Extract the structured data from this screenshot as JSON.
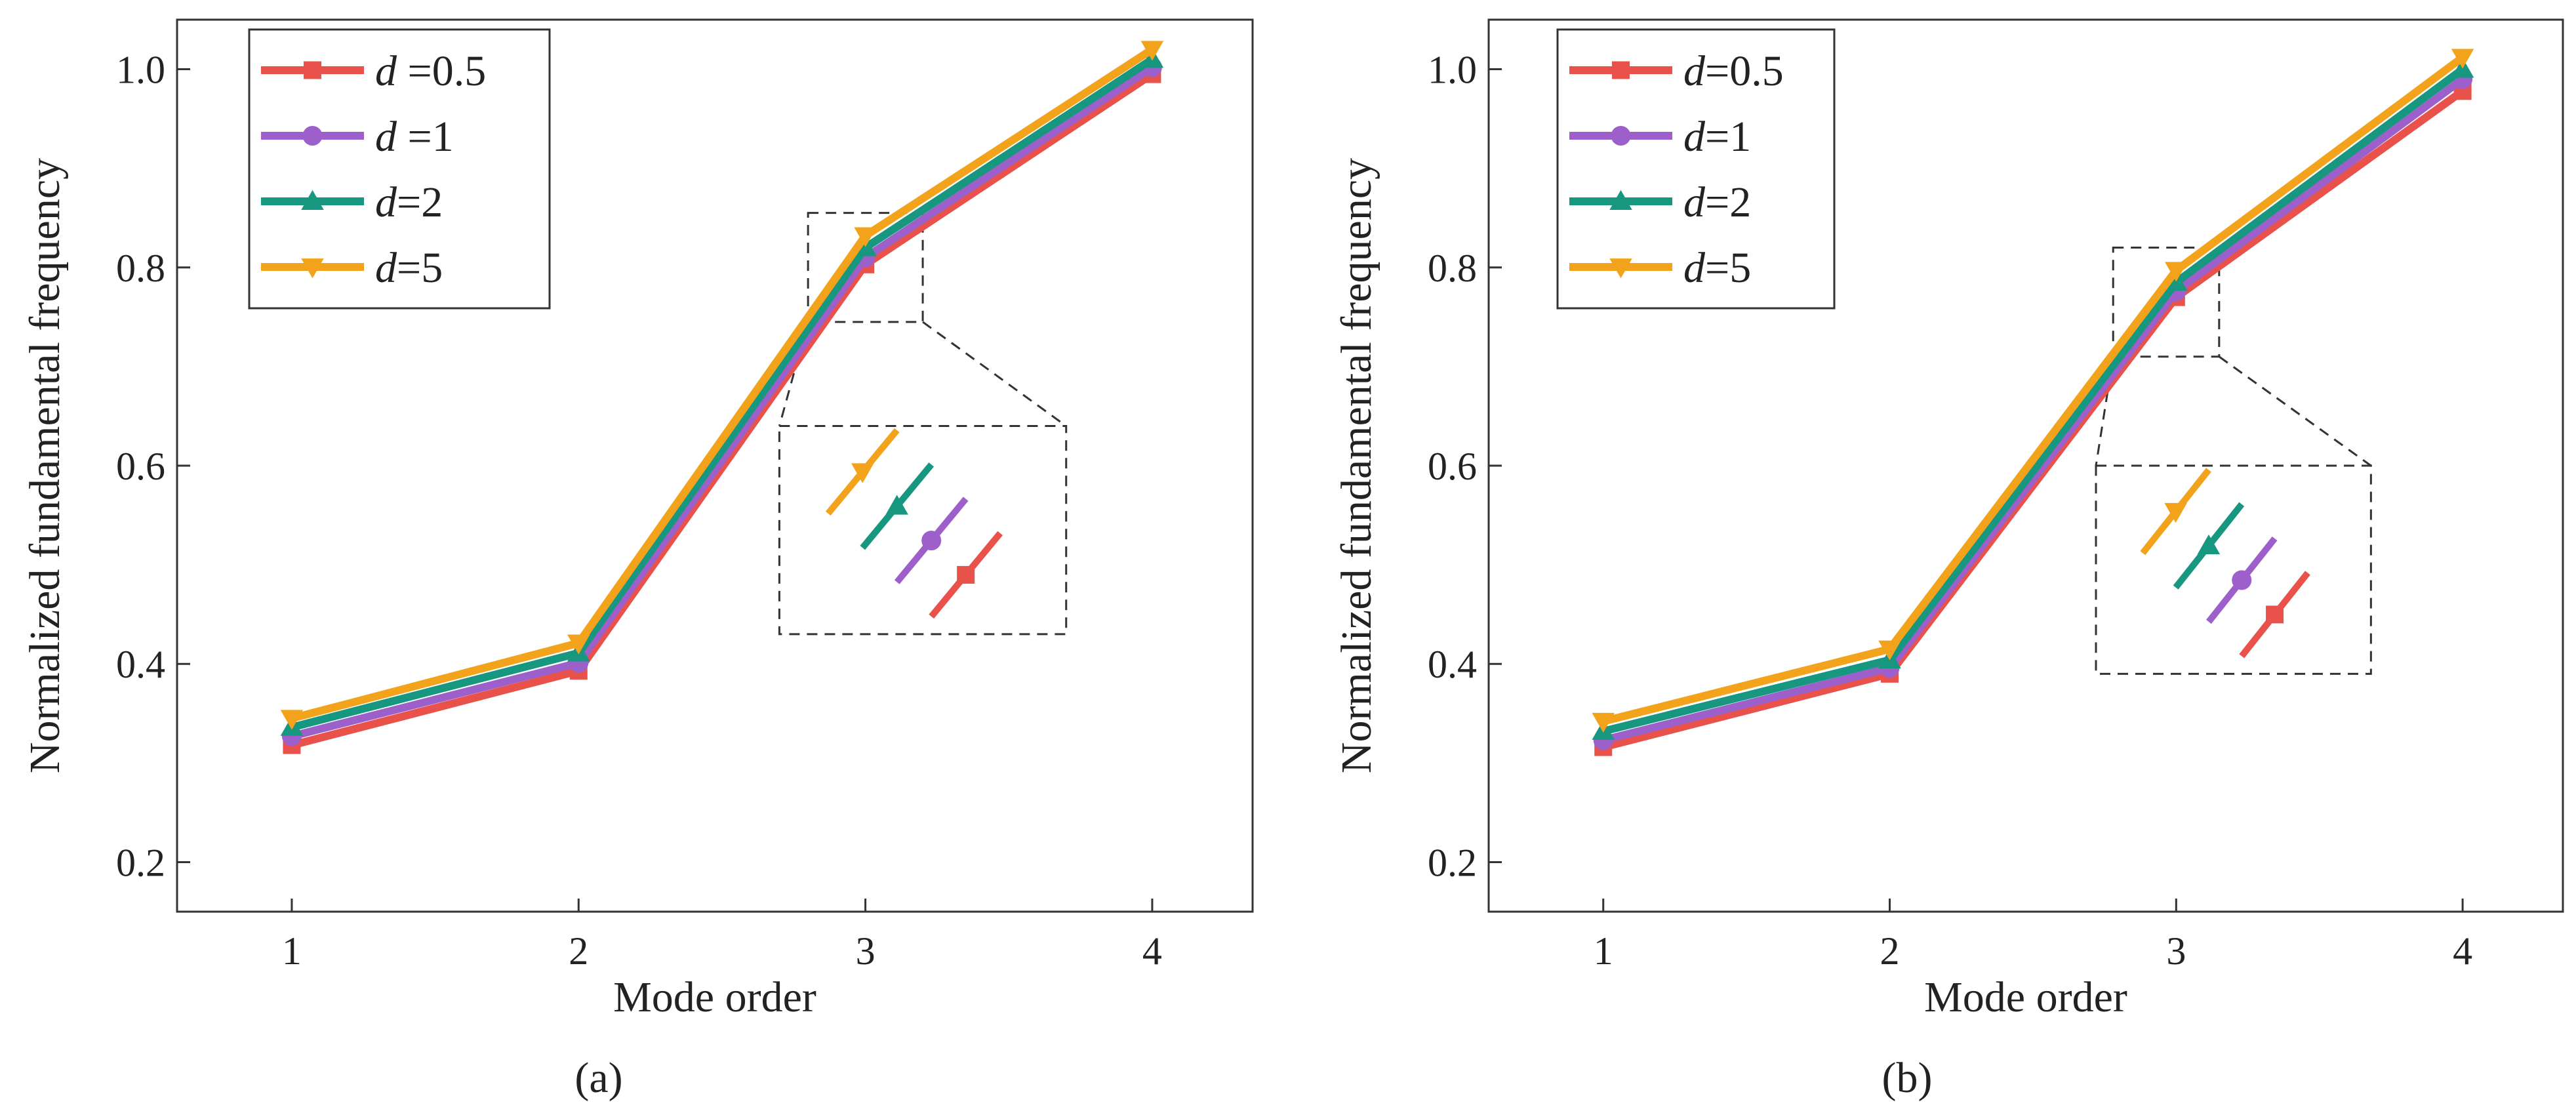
{
  "colors": {
    "d05": "#e8524a",
    "d1": "#9d5fc9",
    "d2": "#17977f",
    "d5": "#f2a31b"
  },
  "chart_data": [
    {
      "type": "line",
      "panel_label": "(a)",
      "xlabel": "Mode order",
      "ylabel": "Normalized fundamental frequency",
      "categories": [
        "1",
        "2",
        "3",
        "4"
      ],
      "x": [
        1,
        2,
        3,
        4
      ],
      "xlim": [
        0.6,
        4.35
      ],
      "ylim": [
        0.15,
        1.05
      ],
      "yticks": [
        0.2,
        0.4,
        0.6,
        0.8,
        1.0
      ],
      "ytick_labels": [
        "0.2",
        "0.4",
        "0.6",
        "0.8",
        "1.0"
      ],
      "legend_position": "top-left",
      "series": [
        {
          "name": "d =0.5",
          "var": "d",
          "rest": " =0.5",
          "color": "#e8524a",
          "marker": "square",
          "values": [
            0.318,
            0.393,
            0.803,
            0.995
          ]
        },
        {
          "name": "d =1",
          "var": "d",
          "rest": " =1",
          "color": "#9d5fc9",
          "marker": "circle",
          "values": [
            0.327,
            0.401,
            0.81,
            1.002
          ]
        },
        {
          "name": "d=2",
          "var": "d",
          "rest": "=2",
          "color": "#17977f",
          "marker": "triangle-up",
          "values": [
            0.336,
            0.411,
            0.82,
            1.01
          ]
        },
        {
          "name": "d=5",
          "var": "d",
          "rest": "=5",
          "color": "#f2a31b",
          "marker": "triangle-down",
          "values": [
            0.345,
            0.421,
            0.832,
            1.02
          ]
        }
      ],
      "zoom_source": {
        "x": [
          2.8,
          3.2
        ],
        "y": [
          0.745,
          0.855
        ]
      },
      "zoom_inset": {
        "x": [
          2.7,
          3.7
        ],
        "y": [
          0.43,
          0.64
        ]
      }
    },
    {
      "type": "line",
      "panel_label": "(b)",
      "xlabel": "Mode order",
      "ylabel": "Normalized fundamental frequency",
      "categories": [
        "1",
        "2",
        "3",
        "4"
      ],
      "x": [
        1,
        2,
        3,
        4
      ],
      "xlim": [
        0.6,
        4.35
      ],
      "ylim": [
        0.15,
        1.05
      ],
      "yticks": [
        0.2,
        0.4,
        0.6,
        0.8,
        1.0
      ],
      "ytick_labels": [
        "0.2",
        "0.4",
        "0.6",
        "0.8",
        "1.0"
      ],
      "legend_position": "top-left",
      "series": [
        {
          "name": "d=0.5",
          "var": "d",
          "rest": "=0.5",
          "color": "#e8524a",
          "marker": "square",
          "values": [
            0.316,
            0.39,
            0.77,
            0.978
          ]
        },
        {
          "name": "d=1",
          "var": "d",
          "rest": "=1",
          "color": "#9d5fc9",
          "marker": "circle",
          "values": [
            0.323,
            0.396,
            0.776,
            0.99
          ]
        },
        {
          "name": "d=2",
          "var": "d",
          "rest": "=2",
          "color": "#17977f",
          "marker": "triangle-up",
          "values": [
            0.332,
            0.404,
            0.785,
            1.0
          ]
        },
        {
          "name": "d=5",
          "var": "d",
          "rest": "=5",
          "color": "#f2a31b",
          "marker": "triangle-down",
          "values": [
            0.342,
            0.415,
            0.797,
            1.012
          ]
        }
      ],
      "zoom_source": {
        "x": [
          2.78,
          3.15
        ],
        "y": [
          0.71,
          0.82
        ]
      },
      "zoom_inset": {
        "x": [
          2.72,
          3.68
        ],
        "y": [
          0.39,
          0.6
        ]
      }
    }
  ]
}
